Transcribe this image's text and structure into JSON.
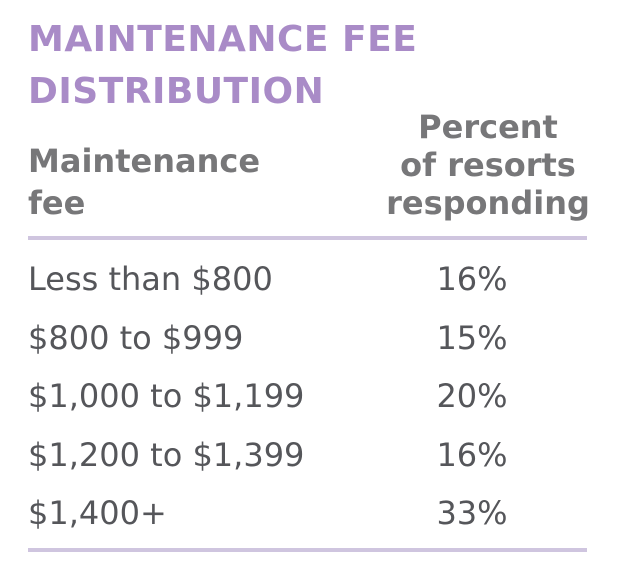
{
  "chart_data": {
    "type": "table",
    "title_lines": [
      "MAINTENANCE FEE",
      "DISTRIBUTION"
    ],
    "columns": [
      {
        "lines": [
          "Maintenance",
          "fee"
        ]
      },
      {
        "lines": [
          "Percent",
          "of resorts",
          "responding"
        ]
      }
    ],
    "rows": [
      {
        "fee": "Less than $800",
        "percent": "16%",
        "value": 16
      },
      {
        "fee": "$800 to $999",
        "percent": "15%",
        "value": 15
      },
      {
        "fee": "$1,000 to $1,199",
        "percent": "20%",
        "value": 20
      },
      {
        "fee": "$1,200 to $1,399",
        "percent": "16%",
        "value": 16
      },
      {
        "fee": "$1,400+",
        "percent": "33%",
        "value": 33
      }
    ]
  },
  "colors": {
    "title": "#a98bc7",
    "header": "#777779",
    "body": "#55565a",
    "rule": "#cfc5df"
  }
}
